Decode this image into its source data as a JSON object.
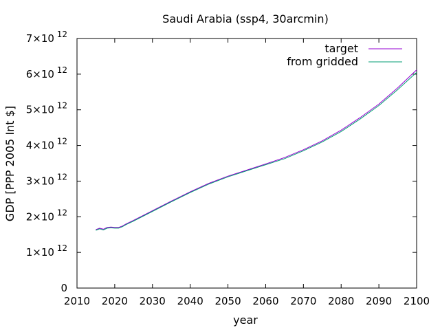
{
  "chart_data": {
    "type": "line",
    "title": "Saudi Arabia (ssp4, 30arcmin)",
    "xlabel": "year",
    "ylabel": "GDP [PPP 2005 Int $]",
    "xlim": [
      2010,
      2100
    ],
    "ylim": [
      0,
      7000000000000.0
    ],
    "x_ticks": [
      "2010",
      "2020",
      "2030",
      "2040",
      "2050",
      "2060",
      "2070",
      "2080",
      "2090",
      "2100"
    ],
    "y_ticks": [
      {
        "base": "0",
        "exp": ""
      },
      {
        "base": "1×10",
        "exp": "12"
      },
      {
        "base": "2×10",
        "exp": "12"
      },
      {
        "base": "3×10",
        "exp": "12"
      },
      {
        "base": "4×10",
        "exp": "12"
      },
      {
        "base": "5×10",
        "exp": "12"
      },
      {
        "base": "6×10",
        "exp": "12"
      },
      {
        "base": "7×10",
        "exp": "12"
      }
    ],
    "y_tick_values": [
      0,
      1000000000000.0,
      2000000000000.0,
      3000000000000.0,
      4000000000000.0,
      5000000000000.0,
      6000000000000.0,
      7000000000000.0
    ],
    "x_tick_values": [
      2010,
      2020,
      2030,
      2040,
      2050,
      2060,
      2070,
      2080,
      2090,
      2100
    ],
    "legend_position": "top-right",
    "grid": false,
    "series": [
      {
        "name": "target",
        "color": "#9400d3",
        "x": [
          2015,
          2016,
          2017,
          2018,
          2019,
          2020,
          2021,
          2022,
          2023,
          2025,
          2030,
          2035,
          2040,
          2045,
          2050,
          2055,
          2060,
          2065,
          2070,
          2075,
          2080,
          2085,
          2090,
          2095,
          2100
        ],
        "y": [
          1640000000000.0,
          1680000000000.0,
          1650000000000.0,
          1700000000000.0,
          1710000000000.0,
          1700000000000.0,
          1700000000000.0,
          1740000000000.0,
          1800000000000.0,
          1900000000000.0,
          2170000000000.0,
          2440000000000.0,
          2700000000000.0,
          2940000000000.0,
          3140000000000.0,
          3310000000000.0,
          3480000000000.0,
          3660000000000.0,
          3880000000000.0,
          4130000000000.0,
          4430000000000.0,
          4780000000000.0,
          5160000000000.0,
          5620000000000.0,
          6120000000000.0
        ]
      },
      {
        "name": "from gridded",
        "color": "#009e73",
        "x": [
          2015,
          2016,
          2017,
          2018,
          2019,
          2020,
          2021,
          2022,
          2023,
          2025,
          2030,
          2035,
          2040,
          2045,
          2050,
          2055,
          2060,
          2065,
          2070,
          2075,
          2080,
          2085,
          2090,
          2095,
          2100
        ],
        "y": [
          1620000000000.0,
          1660000000000.0,
          1630000000000.0,
          1680000000000.0,
          1690000000000.0,
          1680000000000.0,
          1680000000000.0,
          1720000000000.0,
          1780000000000.0,
          1880000000000.0,
          2150000000000.0,
          2420000000000.0,
          2680000000000.0,
          2920000000000.0,
          3120000000000.0,
          3290000000000.0,
          3460000000000.0,
          3630000000000.0,
          3850000000000.0,
          4100000000000.0,
          4390000000000.0,
          4740000000000.0,
          5120000000000.0,
          5570000000000.0,
          6050000000000.0
        ]
      }
    ]
  }
}
